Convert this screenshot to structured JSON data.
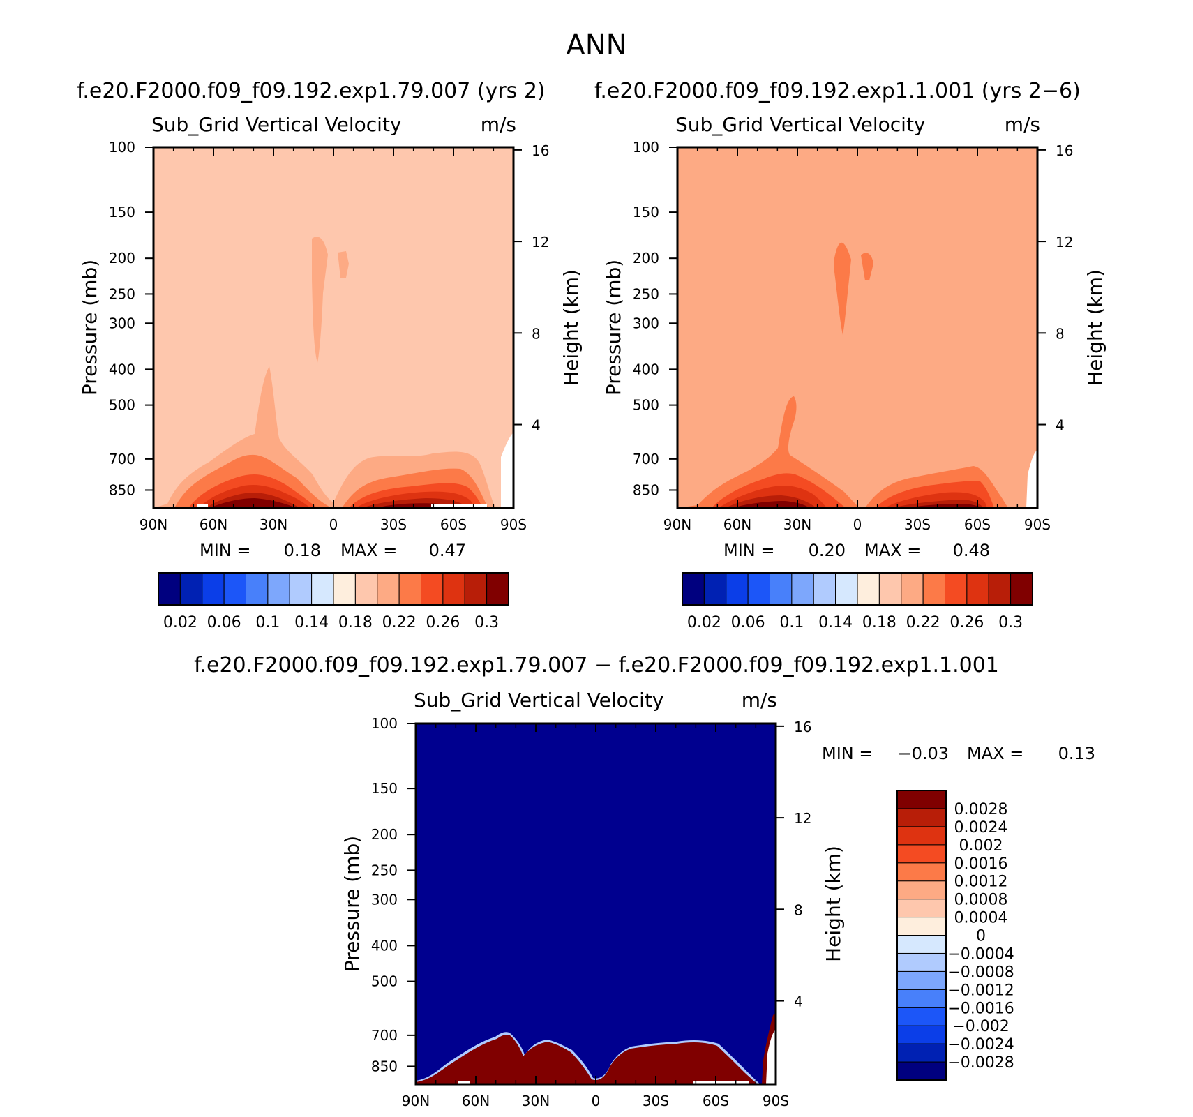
{
  "figure": {
    "title": "ANN",
    "diff_title": "f.e20.F2000.f09_f09.192.exp1.79.007  −  f.e20.F2000.f09_f09.192.exp1.1.001"
  },
  "colors": {
    "abs_palette": [
      "#00007f",
      "#0021b3",
      "#0b3ee8",
      "#1c56f8",
      "#4880fa",
      "#7da7fc",
      "#b0cbfe",
      "#d6e8fe",
      "#feeedd",
      "#fec7ad",
      "#fdaa84",
      "#fc7a48",
      "#f44b22",
      "#de3311",
      "#b81e08",
      "#800000"
    ],
    "diff_palette": [
      "#00007f",
      "#0021b3",
      "#0b3ee8",
      "#1c56f8",
      "#4880fa",
      "#7da7fc",
      "#b0cbfe",
      "#d6e8fe",
      "#feeedd",
      "#fec7ad",
      "#fdaa84",
      "#fc7a48",
      "#f44b22",
      "#de3311",
      "#b81e08",
      "#800000"
    ]
  },
  "chart_data": [
    {
      "type": "heatmap",
      "id": "test",
      "case": "f.e20.F2000.f09_f09.192.exp1.79.007  (yrs  2)",
      "title": "Sub_Grid  Vertical  Velocity",
      "units": "m/s",
      "xlabel": "",
      "ylabel": "Pressure  (mb)",
      "y2label": "Height  (km)",
      "xticks": [
        "90N",
        "60N",
        "30N",
        "0",
        "30S",
        "60S",
        "90S"
      ],
      "xlim": [
        90,
        -90
      ],
      "yticks": [
        100,
        150,
        200,
        250,
        300,
        400,
        500,
        700,
        850
      ],
      "ylim": [
        100,
        950
      ],
      "y2ticks": [
        16,
        12,
        8,
        4
      ],
      "min_label": "MIN  =",
      "min": "0.18",
      "max_label": "MAX  =",
      "max": "0.47",
      "background_level": 0.18,
      "colorbar_levels": [
        "0.02",
        "0.06",
        "0.1",
        "0.14",
        "0.18",
        "0.22",
        "0.26",
        "0.3"
      ]
    },
    {
      "type": "heatmap",
      "id": "control",
      "case": "f.e20.F2000.f09_f09.192.exp1.1.001  (yrs  2−6)",
      "title": "Sub_Grid  Vertical  Velocity",
      "units": "m/s",
      "xlabel": "",
      "ylabel": "Pressure  (mb)",
      "y2label": "Height  (km)",
      "xticks": [
        "90N",
        "60N",
        "30N",
        "0",
        "30S",
        "60S",
        "90S"
      ],
      "xlim": [
        90,
        -90
      ],
      "yticks": [
        100,
        150,
        200,
        250,
        300,
        400,
        500,
        700,
        850
      ],
      "ylim": [
        100,
        950
      ],
      "y2ticks": [
        16,
        12,
        8,
        4
      ],
      "min_label": "MIN  =",
      "min": "0.20",
      "max_label": "MAX  =",
      "max": "0.48",
      "background_level": 0.2,
      "colorbar_levels": [
        "0.02",
        "0.06",
        "0.1",
        "0.14",
        "0.18",
        "0.22",
        "0.26",
        "0.3"
      ]
    },
    {
      "type": "heatmap",
      "id": "diff",
      "title": "Sub_Grid  Vertical  Velocity",
      "units": "m/s",
      "xlabel": "",
      "ylabel": "Pressure  (mb)",
      "y2label": "Height  (km)",
      "xticks": [
        "90N",
        "60N",
        "30N",
        "0",
        "30S",
        "60S",
        "90S"
      ],
      "xlim": [
        90,
        -90
      ],
      "yticks": [
        100,
        150,
        200,
        250,
        300,
        400,
        500,
        700,
        850
      ],
      "ylim": [
        100,
        950
      ],
      "y2ticks": [
        16,
        12,
        8,
        4
      ],
      "min_label": "MIN  =",
      "min": "−0.03",
      "max_label": "MAX  =",
      "max": "0.13",
      "colorbar_levels": [
        "0.0028",
        "0.0024",
        "0.002",
        "0.0016",
        "0.0012",
        "0.0008",
        "0.0004",
        "0",
        "−0.0004",
        "−0.0008",
        "−0.0012",
        "−0.0016",
        "−0.002",
        "−0.0024",
        "−0.0028"
      ]
    }
  ]
}
